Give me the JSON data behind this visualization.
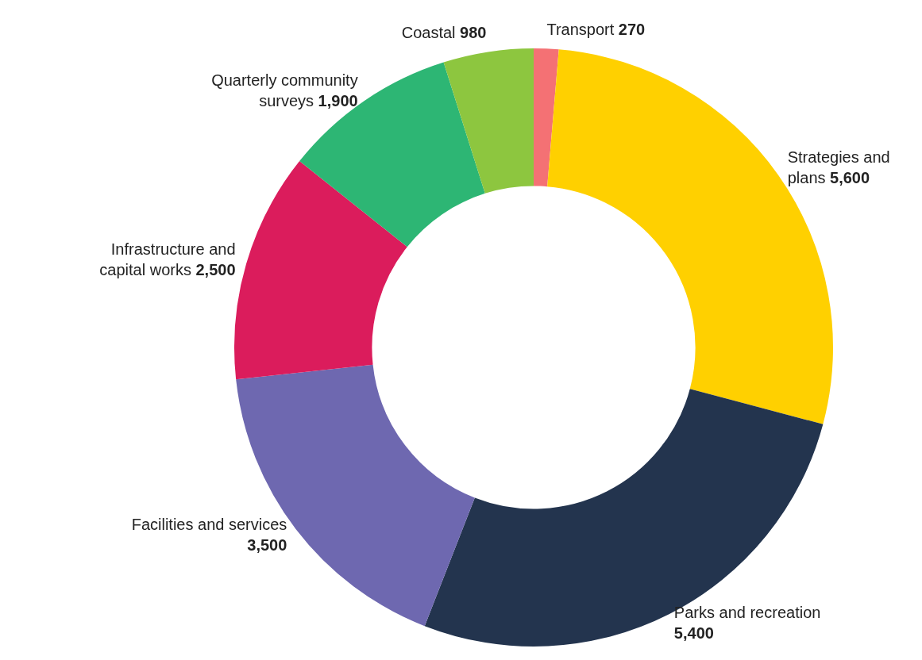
{
  "chart_data": {
    "type": "donut",
    "categories": [
      "Transport",
      "Strategies and plans",
      "Parks and recreation",
      "Facilities and services",
      "Infrastructure and capital works",
      "Quarterly community surveys",
      "Coastal"
    ],
    "values": [
      270,
      5600,
      5400,
      3500,
      2500,
      1900,
      980
    ],
    "value_labels": [
      "270",
      "5,600",
      "5,400",
      "3,500",
      "2,500",
      "1,900",
      "980"
    ],
    "colors": [
      "#f47174",
      "#ffd000",
      "#23344e",
      "#6e68b0",
      "#db1c5c",
      "#2db674",
      "#8dc63f"
    ]
  }
}
